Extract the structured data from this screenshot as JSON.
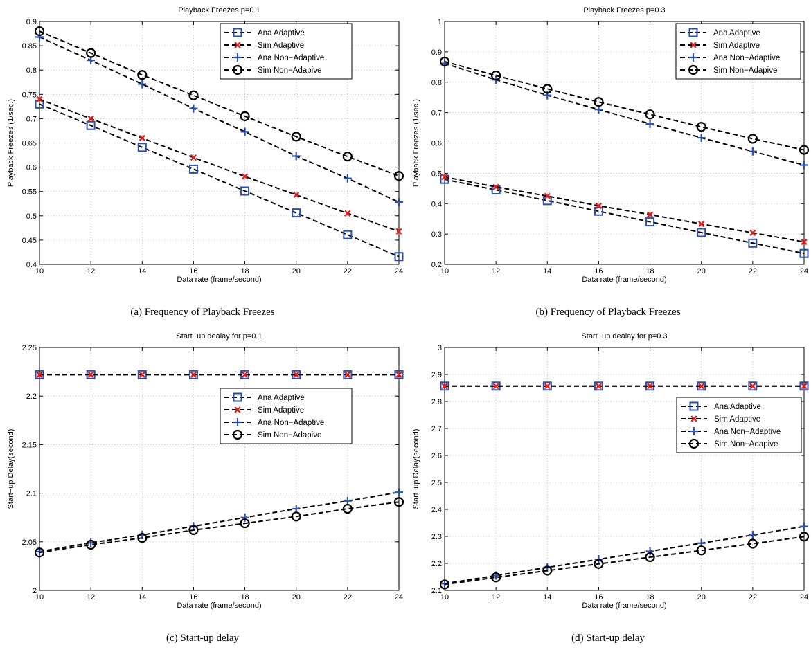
{
  "chart_data": [
    {
      "id": "a",
      "type": "line",
      "title": "Playback Freezes p=0.1",
      "xlabel": "Data rate (frame/second)",
      "ylabel": "Playback Freezes (1/sec.)",
      "xlim": [
        10,
        24
      ],
      "ylim": [
        0.4,
        0.9
      ],
      "xticks": [
        10,
        12,
        14,
        16,
        18,
        20,
        22,
        24
      ],
      "yticks": [
        0.4,
        0.45,
        0.5,
        0.55,
        0.6,
        0.65,
        0.7,
        0.75,
        0.8,
        0.85,
        0.9
      ],
      "ytick_labels": [
        "0.4",
        "0.45",
        "0.5",
        "0.55",
        "0.6",
        "0.65",
        "0.7",
        "0.75",
        "0.8",
        "0.85",
        "0.9"
      ],
      "grid": true,
      "legend_position": "top-right",
      "caption": "(a) Frequency of Playback Freezes",
      "x": [
        10,
        12,
        14,
        16,
        18,
        20,
        22,
        24
      ],
      "series": [
        {
          "name": "Ana Adaptive",
          "marker": "square",
          "color": "#2a4fa8",
          "values": [
            0.73,
            0.686,
            0.641,
            0.596,
            0.551,
            0.506,
            0.461,
            0.416
          ]
        },
        {
          "name": "Sim Adaptive",
          "marker": "x",
          "color": "#e02020",
          "values": [
            0.74,
            0.7,
            0.66,
            0.62,
            0.581,
            0.543,
            0.505,
            0.468
          ]
        },
        {
          "name": "Ana Non−Adaptive",
          "marker": "plus",
          "color": "#2a4fa8",
          "values": [
            0.868,
            0.82,
            0.771,
            0.721,
            0.673,
            0.623,
            0.577,
            0.528
          ]
        },
        {
          "name": "Sim Non−Adapive",
          "marker": "circle",
          "color": "#000000",
          "values": [
            0.88,
            0.835,
            0.79,
            0.748,
            0.705,
            0.663,
            0.622,
            0.582
          ]
        }
      ]
    },
    {
      "id": "b",
      "type": "line",
      "title": "Playback Freezes p=0.3",
      "xlabel": "Data rate (frame/second)",
      "ylabel": "Playback Freezes (1/sec.)",
      "xlim": [
        10,
        24
      ],
      "ylim": [
        0.2,
        1.0
      ],
      "xticks": [
        10,
        12,
        14,
        16,
        18,
        20,
        22,
        24
      ],
      "yticks": [
        0.2,
        0.3,
        0.4,
        0.5,
        0.6,
        0.7,
        0.8,
        0.9,
        1.0
      ],
      "ytick_labels": [
        "0.2",
        "0.3",
        "0.4",
        "0.5",
        "0.6",
        "0.7",
        "0.8",
        "0.9",
        "1"
      ],
      "grid": true,
      "legend_position": "top-right",
      "caption": "(b) Frequency of Playback Freezes",
      "x": [
        10,
        12,
        14,
        16,
        18,
        20,
        22,
        24
      ],
      "series": [
        {
          "name": "Ana Adaptive",
          "marker": "square",
          "color": "#2a4fa8",
          "values": [
            0.48,
            0.445,
            0.41,
            0.375,
            0.34,
            0.305,
            0.27,
            0.236
          ]
        },
        {
          "name": "Sim Adaptive",
          "marker": "x",
          "color": "#e02020",
          "values": [
            0.488,
            0.455,
            0.425,
            0.393,
            0.364,
            0.333,
            0.304,
            0.274
          ]
        },
        {
          "name": "Ana Non−Adaptive",
          "marker": "plus",
          "color": "#2a4fa8",
          "values": [
            0.862,
            0.808,
            0.757,
            0.71,
            0.663,
            0.617,
            0.572,
            0.527
          ]
        },
        {
          "name": "Sim Non−Adapive",
          "marker": "circle",
          "color": "#000000",
          "values": [
            0.868,
            0.822,
            0.778,
            0.735,
            0.694,
            0.653,
            0.614,
            0.577
          ]
        }
      ]
    },
    {
      "id": "c",
      "type": "line",
      "title": "Start−up dealay for p=0.1",
      "xlabel": "Data rate (frame/second)",
      "ylabel": "Start−up Delay(second)",
      "xlim": [
        10,
        24
      ],
      "ylim": [
        2.0,
        2.25
      ],
      "xticks": [
        10,
        12,
        14,
        16,
        18,
        20,
        22,
        24
      ],
      "yticks": [
        2.0,
        2.05,
        2.1,
        2.15,
        2.2,
        2.25
      ],
      "ytick_labels": [
        "2",
        "2.05",
        "2.1",
        "2.15",
        "2.2",
        "2.25"
      ],
      "grid": true,
      "legend_position": "right",
      "caption": "(c) Start-up delay",
      "x": [
        10,
        12,
        14,
        16,
        18,
        20,
        22,
        24
      ],
      "series": [
        {
          "name": "Ana Adaptive",
          "marker": "square",
          "color": "#2a4fa8",
          "values": [
            2.222,
            2.222,
            2.222,
            2.222,
            2.222,
            2.222,
            2.222,
            2.222
          ]
        },
        {
          "name": "Sim Adaptive",
          "marker": "x",
          "color": "#e02020",
          "values": [
            2.222,
            2.222,
            2.222,
            2.222,
            2.222,
            2.222,
            2.222,
            2.222
          ]
        },
        {
          "name": "Ana Non−Adaptive",
          "marker": "plus",
          "color": "#2a4fa8",
          "values": [
            2.04,
            2.049,
            2.057,
            2.066,
            2.075,
            2.084,
            2.092,
            2.101
          ]
        },
        {
          "name": "Sim Non−Adapive",
          "marker": "circle",
          "color": "#000000",
          "values": [
            2.039,
            2.047,
            2.054,
            2.062,
            2.069,
            2.076,
            2.084,
            2.091
          ]
        }
      ]
    },
    {
      "id": "d",
      "type": "line",
      "title": "Start−up dealay for p=0.3",
      "xlabel": "Data rate (frame/second)",
      "ylabel": "Start−up Delay(second)",
      "xlim": [
        10,
        24
      ],
      "ylim": [
        2.1,
        3.0
      ],
      "xticks": [
        10,
        12,
        14,
        16,
        18,
        20,
        22,
        24
      ],
      "yticks": [
        2.1,
        2.2,
        2.3,
        2.4,
        2.5,
        2.6,
        2.7,
        2.8,
        2.9,
        3.0
      ],
      "ytick_labels": [
        "2.1",
        "2.2",
        "2.3",
        "2.4",
        "2.5",
        "2.6",
        "2.7",
        "2.8",
        "2.9",
        "3"
      ],
      "grid": true,
      "legend_position": "right",
      "caption": "(d) Start-up delay",
      "x": [
        10,
        12,
        14,
        16,
        18,
        20,
        22,
        24
      ],
      "series": [
        {
          "name": "Ana Adaptive",
          "marker": "square",
          "color": "#2a4fa8",
          "values": [
            2.857,
            2.857,
            2.857,
            2.857,
            2.857,
            2.857,
            2.857,
            2.857
          ]
        },
        {
          "name": "Sim Adaptive",
          "marker": "x",
          "color": "#e02020",
          "values": [
            2.857,
            2.857,
            2.857,
            2.857,
            2.857,
            2.857,
            2.857,
            2.857
          ]
        },
        {
          "name": "Ana Non−Adaptive",
          "marker": "plus",
          "color": "#2a4fa8",
          "values": [
            2.125,
            2.155,
            2.185,
            2.215,
            2.245,
            2.275,
            2.305,
            2.337
          ]
        },
        {
          "name": "Sim Non−Adapive",
          "marker": "circle",
          "color": "#000000",
          "values": [
            2.122,
            2.148,
            2.173,
            2.198,
            2.223,
            2.248,
            2.273,
            2.299
          ]
        }
      ]
    }
  ]
}
